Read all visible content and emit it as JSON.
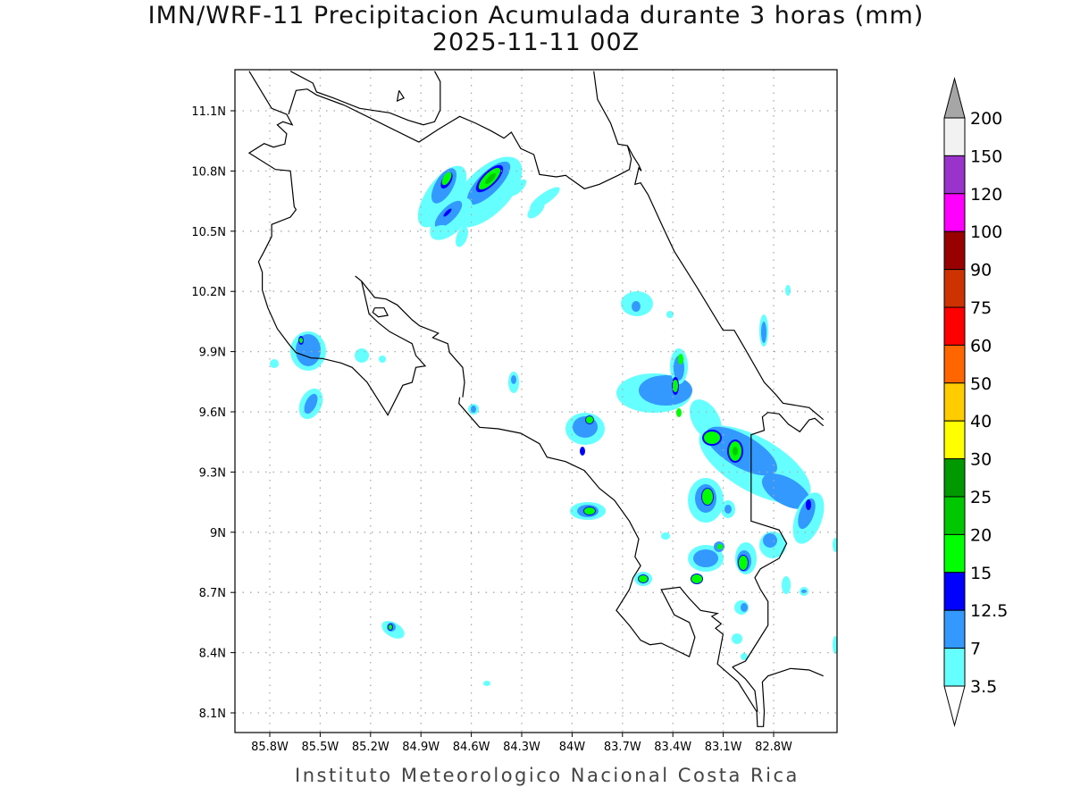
{
  "header": {
    "title": "IMN/WRF-11 Precipitacion Acumulada durante 3 horas (mm)",
    "subtitle": "2025-11-11 00Z"
  },
  "footer": "Instituto Meteorologico Nacional Costa Rica",
  "chart_data": {
    "type": "heatmap",
    "title": "IMN/WRF-11 Precipitacion Acumulada durante 3 horas (mm)",
    "subtitle": "2025-11-11 00Z",
    "units": "mm",
    "lat_ticks": [
      "11.1N",
      "10.8N",
      "10.5N",
      "10.2N",
      "9.9N",
      "9.6N",
      "9.3N",
      "9N",
      "8.7N",
      "8.4N",
      "8.1N"
    ],
    "lon_ticks": [
      "85.8W",
      "85.5W",
      "85.2W",
      "84.9W",
      "84.6W",
      "84.3W",
      "84W",
      "83.7W",
      "83.4W",
      "83.1W",
      "82.8W"
    ],
    "lat_range": [
      8.0,
      11.3
    ],
    "lon_range": [
      -86.0,
      -82.4
    ],
    "grid": true,
    "legend_position": "right",
    "colorbar": {
      "labels": [
        "200",
        "150",
        "120",
        "100",
        "90",
        "75",
        "60",
        "50",
        "40",
        "30",
        "25",
        "20",
        "15",
        "12.5",
        "7",
        "3.5"
      ],
      "colors": [
        "#f2f2f2",
        "#9933cc",
        "#ff00ff",
        "#990000",
        "#cc3300",
        "#ff0000",
        "#ff6600",
        "#ffcc00",
        "#ffff00",
        "#009900",
        "#00c800",
        "#00ff00",
        "#0000ff",
        "#3399ff",
        "#66ffff"
      ],
      "over_color": "#a6a6a6",
      "under_color": "#ffffff"
    }
  }
}
